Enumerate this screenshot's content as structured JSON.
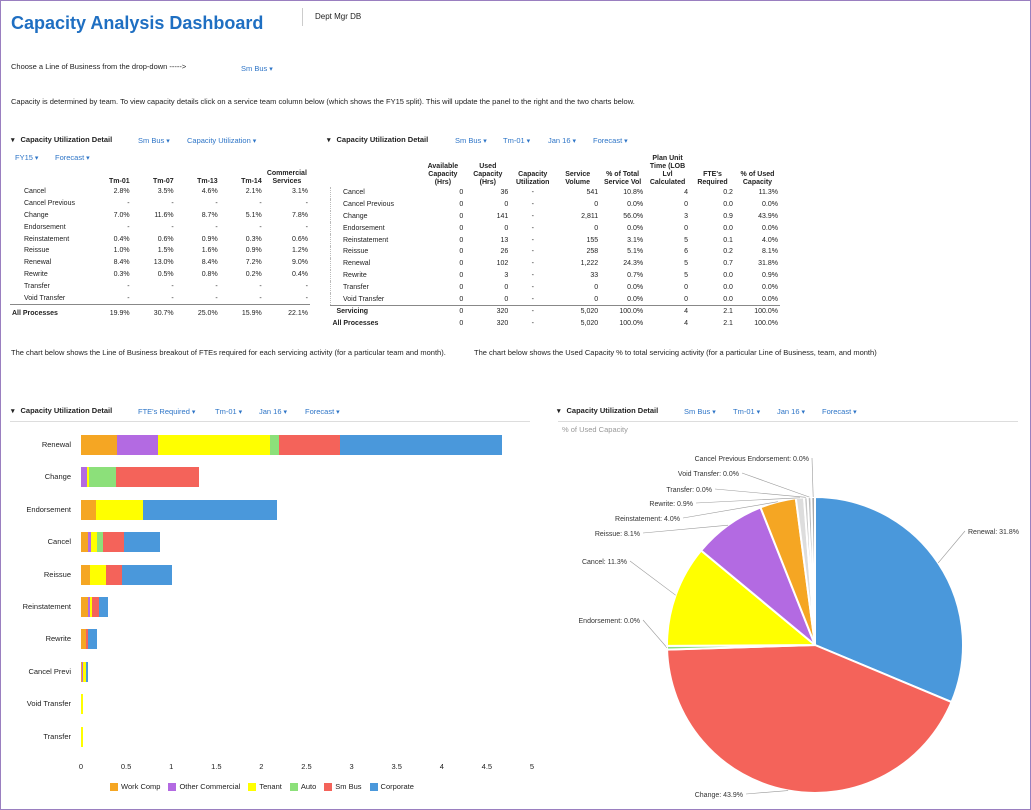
{
  "header": {
    "title": "Capacity Analysis Dashboard",
    "dept_tab": "Dept Mgr DB"
  },
  "lob": {
    "prompt": "Choose a Line of Business from the drop-down ----->",
    "value": "Sm Bus"
  },
  "info_text": "Capacity is determined by team. To view capacity details click on a service team column below (which shows the FY15 split). This will update the panel to the right and the two charts below.",
  "left_panel": {
    "title": "Capacity Utilization Detail",
    "filter1": "Sm Bus",
    "filter2": "Capacity Utilization",
    "filter3": "FY15",
    "filter4": "Forecast",
    "headers": [
      "Tm-01",
      "Tm-07",
      "Tm-13",
      "Tm-14",
      "Commercial Services"
    ],
    "rows": [
      {
        "label": "Cancel",
        "v": [
          "2.8%",
          "3.5%",
          "4.6%",
          "2.1%",
          "3.1%"
        ]
      },
      {
        "label": "Cancel Previous",
        "v": [
          "-",
          "-",
          "-",
          "-",
          "-"
        ]
      },
      {
        "label": "Change",
        "v": [
          "7.0%",
          "11.6%",
          "8.7%",
          "5.1%",
          "7.8%"
        ]
      },
      {
        "label": "Endorsement",
        "v": [
          "-",
          "-",
          "-",
          "-",
          "-"
        ]
      },
      {
        "label": "Reinstatement",
        "v": [
          "0.4%",
          "0.6%",
          "0.9%",
          "0.3%",
          "0.6%"
        ]
      },
      {
        "label": "Reissue",
        "v": [
          "1.0%",
          "1.5%",
          "1.6%",
          "0.9%",
          "1.2%"
        ]
      },
      {
        "label": "Renewal",
        "v": [
          "8.4%",
          "13.0%",
          "8.4%",
          "7.2%",
          "9.0%"
        ]
      },
      {
        "label": "Rewrite",
        "v": [
          "0.3%",
          "0.5%",
          "0.8%",
          "0.2%",
          "0.4%"
        ]
      },
      {
        "label": "Transfer",
        "v": [
          "-",
          "-",
          "-",
          "-",
          "-"
        ]
      },
      {
        "label": "Void Transfer",
        "v": [
          "-",
          "-",
          "-",
          "-",
          "-"
        ]
      }
    ],
    "total": {
      "label": "All Processes",
      "v": [
        "19.9%",
        "30.7%",
        "25.0%",
        "15.9%",
        "22.1%"
      ]
    }
  },
  "right_panel": {
    "title": "Capacity Utilization Detail",
    "filter1": "Sm Bus",
    "filter2": "Tm-01",
    "filter3": "Jan 16",
    "filter4": "Forecast",
    "headers": [
      "Available Capacity (Hrs)",
      "Used Capacity (Hrs)",
      "Capacity Utilization",
      "Service Volume",
      "% of Total Service Vol",
      "Plan Unit Time (LOB Lvl Calculated",
      "FTE's Required",
      "% of Used Capacity"
    ],
    "rows": [
      {
        "label": "Cancel",
        "v": [
          "0",
          "36",
          "-",
          "541",
          "10.8%",
          "4",
          "0.2",
          "11.3%"
        ]
      },
      {
        "label": "Cancel Previous",
        "v": [
          "0",
          "0",
          "-",
          "0",
          "0.0%",
          "0",
          "0.0",
          "0.0%"
        ]
      },
      {
        "label": "Change",
        "v": [
          "0",
          "141",
          "-",
          "2,811",
          "56.0%",
          "3",
          "0.9",
          "43.9%"
        ]
      },
      {
        "label": "Endorsement",
        "v": [
          "0",
          "0",
          "-",
          "0",
          "0.0%",
          "0",
          "0.0",
          "0.0%"
        ]
      },
      {
        "label": "Reinstatement",
        "v": [
          "0",
          "13",
          "-",
          "155",
          "3.1%",
          "5",
          "0.1",
          "4.0%"
        ]
      },
      {
        "label": "Reissue",
        "v": [
          "0",
          "26",
          "-",
          "258",
          "5.1%",
          "6",
          "0.2",
          "8.1%"
        ]
      },
      {
        "label": "Renewal",
        "v": [
          "0",
          "102",
          "-",
          "1,222",
          "24.3%",
          "5",
          "0.7",
          "31.8%"
        ]
      },
      {
        "label": "Rewrite",
        "v": [
          "0",
          "3",
          "-",
          "33",
          "0.7%",
          "5",
          "0.0",
          "0.9%"
        ]
      },
      {
        "label": "Transfer",
        "v": [
          "0",
          "0",
          "-",
          "0",
          "0.0%",
          "0",
          "0.0",
          "0.0%"
        ]
      },
      {
        "label": "Void Transfer",
        "v": [
          "0",
          "0",
          "-",
          "0",
          "0.0%",
          "0",
          "0.0",
          "0.0%"
        ]
      }
    ],
    "servicing": {
      "label": "Servicing",
      "v": [
        "0",
        "320",
        "-",
        "5,020",
        "100.0%",
        "4",
        "2.1",
        "100.0%"
      ]
    },
    "total": {
      "label": "All Processes",
      "v": [
        "0",
        "320",
        "-",
        "5,020",
        "100.0%",
        "4",
        "2.1",
        "100.0%"
      ]
    }
  },
  "notes": {
    "left": "The chart below shows the Line of Business breakout of FTEs required for each servicing activity (for a particular team and month).",
    "right": "The chart below shows the Used Capacity % to total servicing activity (for a particular Line of Business, team, and month)"
  },
  "bar_panel": {
    "title": "Capacity Utilization Detail",
    "filter1": "FTE's Required",
    "filter2": "Tm-01",
    "filter3": "Jan 16",
    "filter4": "Forecast"
  },
  "pie_panel": {
    "title": "Capacity Utilization Detail",
    "filter1": "Sm Bus",
    "filter2": "Tm-01",
    "filter3": "Jan 16",
    "filter4": "Forecast"
  },
  "chart_data": [
    {
      "type": "bar",
      "orientation": "horizontal",
      "stacked": true,
      "categories": [
        "Renewal",
        "Change",
        "Endorsement",
        "Cancel",
        "Reissue",
        "Reinstatement",
        "Rewrite",
        "Cancel Previ",
        "Void Transfer",
        "Transfer"
      ],
      "xlim": [
        0,
        5
      ],
      "xticks": [
        "0",
        "0.5",
        "1",
        "1.5",
        "2",
        "2.5",
        "3",
        "3.5",
        "4",
        "4.5",
        "5"
      ],
      "series": [
        {
          "name": "Work Comp",
          "color": "#f5a623",
          "values": [
            0.4,
            0.0,
            0.17,
            0.08,
            0.1,
            0.08,
            0.05,
            0.01,
            0.0,
            0.0
          ]
        },
        {
          "name": "Other Commercial",
          "color": "#b36ae2",
          "values": [
            0.45,
            0.07,
            0.0,
            0.03,
            0.0,
            0.02,
            0.0,
            0.01,
            0.0,
            0.0
          ]
        },
        {
          "name": "Tenant",
          "color": "#ffff00",
          "values": [
            1.25,
            0.02,
            0.52,
            0.07,
            0.18,
            0.02,
            0.01,
            0.03,
            0.02,
            0.02
          ]
        },
        {
          "name": "Auto",
          "color": "#8ce07a",
          "values": [
            0.1,
            0.3,
            0.0,
            0.06,
            0.0,
            0.0,
            0.0,
            0.0,
            0.0,
            0.0
          ]
        },
        {
          "name": "Sm Bus",
          "color": "#f4635a",
          "values": [
            0.67,
            0.92,
            0.0,
            0.24,
            0.18,
            0.08,
            0.02,
            0.0,
            0.0,
            0.0
          ]
        },
        {
          "name": "Corporate",
          "color": "#4a98db",
          "values": [
            1.8,
            0.0,
            1.48,
            0.4,
            0.55,
            0.1,
            0.1,
            0.03,
            0.0,
            0.0
          ]
        }
      ]
    },
    {
      "type": "pie",
      "subtitle": "% of Used Capacity",
      "slices": [
        {
          "label": "Renewal: 31.8%",
          "value": 31.8,
          "color": "#4a98db"
        },
        {
          "label": "Change: 43.9%",
          "value": 43.9,
          "color": "#f4635a"
        },
        {
          "label": "Endorsement: 0.0%",
          "value": 0.0,
          "color": "#8ce07a"
        },
        {
          "label": "Cancel: 11.3%",
          "value": 11.3,
          "color": "#ffff00"
        },
        {
          "label": "Reissue: 8.1%",
          "value": 8.1,
          "color": "#b36ae2"
        },
        {
          "label": "Reinstatement: 4.0%",
          "value": 4.0,
          "color": "#f5a623"
        },
        {
          "label": "Rewrite: 0.9%",
          "value": 0.9,
          "color": "#dddddd"
        },
        {
          "label": "Transfer: 0.0%",
          "value": 0.0,
          "color": "#c8c8c8"
        },
        {
          "label": "Void Transfer: 0.0%",
          "value": 0.0,
          "color": "#bbbbbb"
        },
        {
          "label": "Cancel Previous Endorsement: 0.0%",
          "value": 0.0,
          "color": "#aaaaaa"
        }
      ]
    }
  ]
}
